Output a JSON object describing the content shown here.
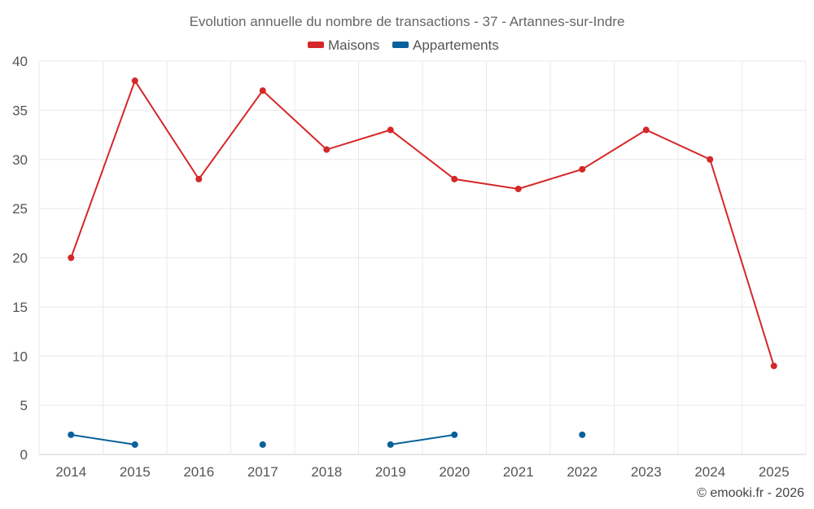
{
  "chart_data": {
    "type": "line",
    "title": "Evolution annuelle du nombre de transactions - 37 - Artannes-sur-Indre",
    "categories": [
      "2014",
      "2015",
      "2016",
      "2017",
      "2018",
      "2019",
      "2020",
      "2021",
      "2022",
      "2023",
      "2024",
      "2025"
    ],
    "ylim": [
      0,
      40
    ],
    "yticks": [
      0,
      5,
      10,
      15,
      20,
      25,
      30,
      35,
      40
    ],
    "xlabel": "",
    "ylabel": "",
    "grid": true,
    "legend_position": "top-center",
    "series": [
      {
        "name": "Maisons",
        "color": "#d62728",
        "values": [
          20,
          38,
          28,
          37,
          31,
          33,
          28,
          27,
          29,
          33,
          30,
          9
        ]
      },
      {
        "name": "Appartements",
        "color": "#08619a",
        "values": [
          2,
          1,
          null,
          1,
          null,
          1,
          2,
          null,
          2,
          null,
          null,
          null
        ]
      }
    ]
  },
  "credit": "© emooki.fr - 2026"
}
